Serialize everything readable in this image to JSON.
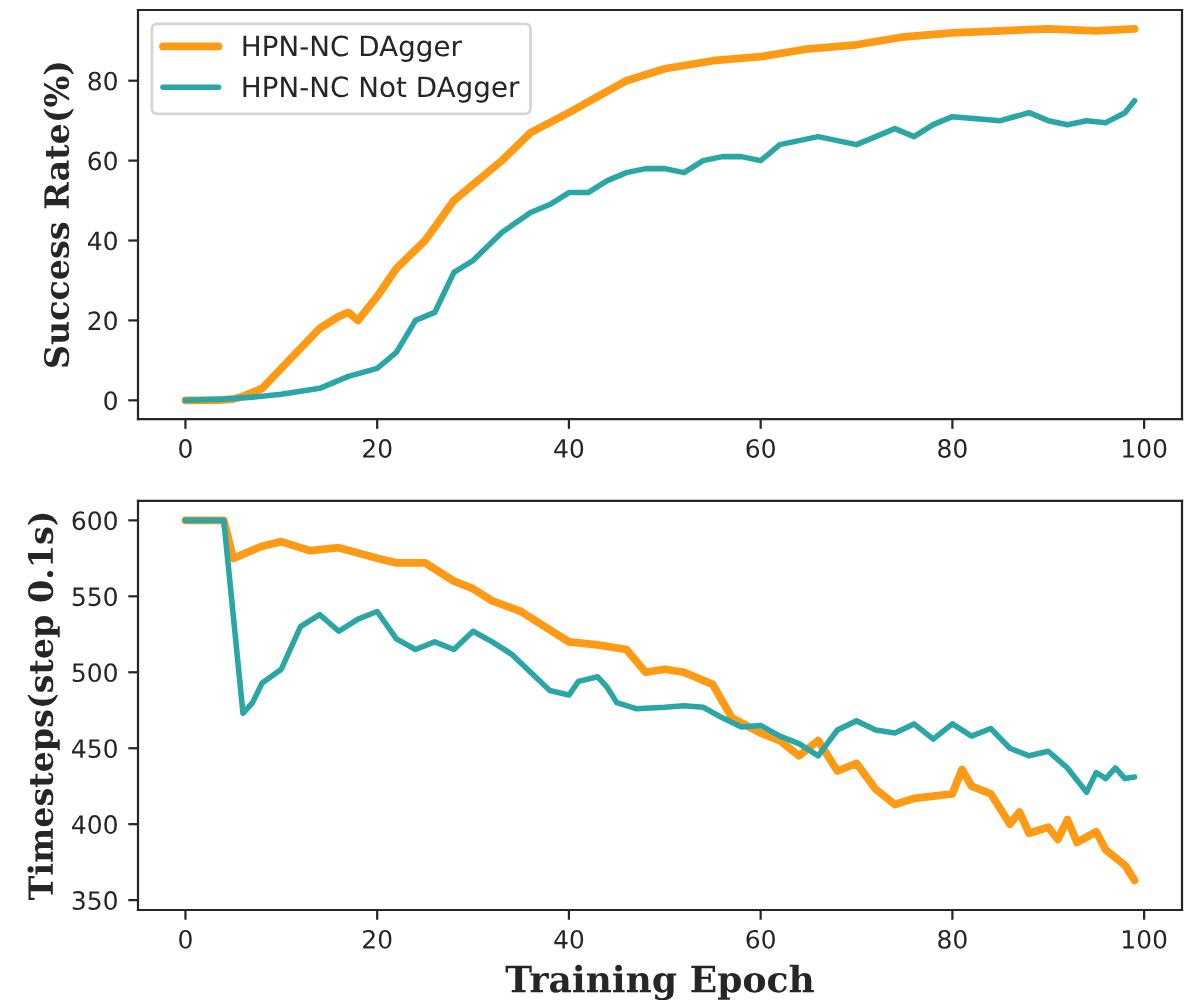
{
  "chart_data": [
    {
      "type": "line",
      "ylabel": "Success Rate(%)",
      "xlim": [
        -4.95,
        103.95
      ],
      "xticks": [
        0,
        20,
        40,
        60,
        80,
        100
      ],
      "ylim": [
        -4.7,
        97.7
      ],
      "yticks": [
        0,
        20,
        40,
        60,
        80
      ],
      "legend": "top left",
      "grid": false,
      "series": [
        {
          "name": "HPN-NC DAgger",
          "color": "#ff9a14",
          "x": [
            0,
            3,
            5,
            6,
            8,
            10,
            12,
            14,
            16,
            17,
            18,
            20,
            22,
            25,
            28,
            30,
            33,
            36,
            40,
            43,
            46,
            50,
            55,
            60,
            65,
            70,
            75,
            80,
            85,
            90,
            95,
            99
          ],
          "values": [
            0,
            0,
            0.3,
            1,
            3,
            8,
            13,
            18,
            21,
            22,
            20,
            26,
            33,
            40,
            50,
            54,
            60,
            67,
            72,
            76,
            80,
            83,
            85,
            86,
            88,
            89,
            91,
            92,
            92.5,
            93,
            92.5,
            93
          ]
        },
        {
          "name": "HPN-NC Not DAgger",
          "color": "#2aa6a6",
          "x": [
            0,
            4,
            7,
            10,
            14,
            17,
            20,
            22,
            24,
            26,
            28,
            30,
            33,
            36,
            38,
            40,
            42,
            44,
            46,
            48,
            50,
            52,
            54,
            56,
            58,
            60,
            62,
            64,
            66,
            68,
            70,
            72,
            74,
            76,
            78,
            80,
            85,
            88,
            90,
            92,
            94,
            96,
            98,
            99
          ],
          "values": [
            0,
            0.3,
            0.8,
            1.5,
            3,
            6,
            8,
            12,
            20,
            22,
            32,
            35,
            42,
            47,
            49,
            52,
            52,
            55,
            57,
            58,
            58,
            57,
            60,
            61,
            61,
            60,
            64,
            65,
            66,
            65,
            64,
            66,
            68,
            66,
            69,
            71,
            70,
            72,
            70,
            69,
            70,
            69.5,
            72,
            75
          ]
        }
      ]
    },
    {
      "type": "line",
      "xlabel": "Training Epoch",
      "ylabel": "Timesteps(step 0.1s)",
      "xlim": [
        -4.95,
        103.95
      ],
      "xticks": [
        0,
        20,
        40,
        60,
        80,
        100
      ],
      "ylim": [
        343.5,
        612.8
      ],
      "yticks": [
        350,
        400,
        450,
        500,
        550,
        600
      ],
      "legend": false,
      "grid": false,
      "series": [
        {
          "color": "#ff9a14",
          "x": [
            0,
            4,
            5,
            8,
            10,
            13,
            16,
            20,
            22,
            25,
            28,
            30,
            32,
            35,
            38,
            40,
            43,
            46,
            48,
            50,
            52,
            55,
            57,
            60,
            62,
            64,
            66,
            68,
            70,
            72,
            74,
            76,
            80,
            81,
            82,
            84,
            86,
            87,
            88,
            90,
            91,
            92,
            93,
            95,
            96,
            98,
            99
          ],
          "values": [
            600,
            600,
            575,
            583,
            586,
            580,
            582,
            575,
            572,
            572,
            560,
            555,
            547,
            540,
            528,
            520,
            518,
            515,
            500,
            502,
            500,
            492,
            470,
            460,
            455,
            445,
            455,
            435,
            440,
            423,
            413,
            417,
            420,
            436,
            425,
            420,
            400,
            408,
            394,
            398,
            390,
            403,
            388,
            395,
            383,
            373,
            363
          ]
        },
        {
          "color": "#2aa6a6",
          "x": [
            0,
            4,
            6,
            7,
            8,
            10,
            12,
            14,
            16,
            18,
            20,
            22,
            24,
            26,
            28,
            30,
            32,
            34,
            36,
            38,
            40,
            41,
            43,
            44,
            45,
            47,
            50,
            52,
            54,
            56,
            58,
            60,
            62,
            64,
            66,
            68,
            70,
            72,
            74,
            76,
            78,
            80,
            82,
            84,
            86,
            88,
            90,
            92,
            94,
            95,
            96,
            97,
            98,
            99
          ],
          "values": [
            600,
            600,
            473,
            480,
            493,
            502,
            530,
            538,
            527,
            535,
            540,
            522,
            515,
            520,
            515,
            527,
            520,
            512,
            500,
            488,
            485,
            494,
            497,
            490,
            480,
            476,
            477,
            478,
            477,
            470,
            464,
            465,
            458,
            453,
            445,
            462,
            468,
            462,
            460,
            466,
            456,
            466,
            458,
            463,
            450,
            445,
            448,
            437,
            421,
            434,
            430,
            437,
            430,
            431
          ]
        }
      ]
    }
  ]
}
